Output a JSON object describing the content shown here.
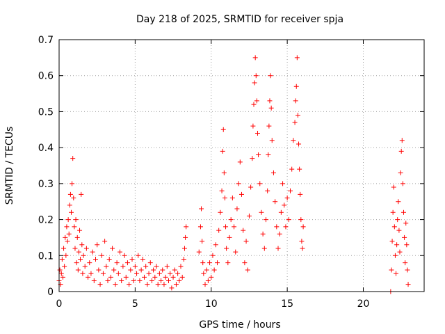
{
  "chart_data": {
    "type": "scatter",
    "title": "Day 218 of 2025, SRMTID for receiver spja",
    "xlabel": "GPS time / hours",
    "ylabel": "SRMTID / TECUs",
    "xlim": [
      0,
      24
    ],
    "ylim": [
      0,
      0.7
    ],
    "xticks": [
      0,
      5,
      10,
      15,
      20
    ],
    "yticks": [
      0,
      0.1,
      0.2,
      0.3,
      0.4,
      0.5,
      0.6,
      0.7
    ],
    "xtick_labels": [
      "0",
      "5",
      "10",
      "15",
      "20"
    ],
    "ytick_labels": [
      "0",
      "0.1",
      "0.2",
      "0.3",
      "0.4",
      "0.5",
      "0.6",
      "0.7"
    ],
    "grid": true,
    "marker": "+",
    "color": "#ff0000",
    "series": [
      {
        "name": "SRMTID",
        "points": [
          [
            0.0,
            0.03
          ],
          [
            0.05,
            0.06
          ],
          [
            0.1,
            0.02
          ],
          [
            0.15,
            0.05
          ],
          [
            0.2,
            0.09
          ],
          [
            0.25,
            0.04
          ],
          [
            0.3,
            0.12
          ],
          [
            0.35,
            0.07
          ],
          [
            0.4,
            0.15
          ],
          [
            0.45,
            0.1
          ],
          [
            0.5,
            0.18
          ],
          [
            0.55,
            0.14
          ],
          [
            0.6,
            0.2
          ],
          [
            0.65,
            0.16
          ],
          [
            0.7,
            0.24
          ],
          [
            0.75,
            0.27
          ],
          [
            0.8,
            0.22
          ],
          [
            0.85,
            0.3
          ],
          [
            0.9,
            0.37
          ],
          [
            0.95,
            0.26
          ],
          [
            1.0,
            0.18
          ],
          [
            1.05,
            0.12
          ],
          [
            1.1,
            0.2
          ],
          [
            1.15,
            0.08
          ],
          [
            1.2,
            0.15
          ],
          [
            1.25,
            0.06
          ],
          [
            1.3,
            0.11
          ],
          [
            1.35,
            0.17
          ],
          [
            1.4,
            0.09
          ],
          [
            1.45,
            0.27
          ],
          [
            1.5,
            0.13
          ],
          [
            1.55,
            0.05
          ],
          [
            1.6,
            0.1
          ],
          [
            1.7,
            0.07
          ],
          [
            1.8,
            0.12
          ],
          [
            1.9,
            0.04
          ],
          [
            2.0,
            0.08
          ],
          [
            2.1,
            0.05
          ],
          [
            2.2,
            0.11
          ],
          [
            2.3,
            0.03
          ],
          [
            2.4,
            0.09
          ],
          [
            2.5,
            0.13
          ],
          [
            2.6,
            0.06
          ],
          [
            2.7,
            0.02
          ],
          [
            2.8,
            0.1
          ],
          [
            2.9,
            0.05
          ],
          [
            3.0,
            0.14
          ],
          [
            3.1,
            0.07
          ],
          [
            3.2,
            0.03
          ],
          [
            3.3,
            0.09
          ],
          [
            3.4,
            0.04
          ],
          [
            3.5,
            0.12
          ],
          [
            3.6,
            0.06
          ],
          [
            3.7,
            0.02
          ],
          [
            3.8,
            0.08
          ],
          [
            3.9,
            0.05
          ],
          [
            4.0,
            0.11
          ],
          [
            4.1,
            0.03
          ],
          [
            4.2,
            0.07
          ],
          [
            4.3,
            0.1
          ],
          [
            4.4,
            0.04
          ],
          [
            4.5,
            0.08
          ],
          [
            4.6,
            0.02
          ],
          [
            4.7,
            0.06
          ],
          [
            4.8,
            0.09
          ],
          [
            4.9,
            0.03
          ],
          [
            5.0,
            0.07
          ],
          [
            5.1,
            0.05
          ],
          [
            5.2,
            0.1
          ],
          [
            5.3,
            0.03
          ],
          [
            5.4,
            0.06
          ],
          [
            5.5,
            0.09
          ],
          [
            5.6,
            0.04
          ],
          [
            5.7,
            0.07
          ],
          [
            5.8,
            0.02
          ],
          [
            5.9,
            0.05
          ],
          [
            6.0,
            0.08
          ],
          [
            6.1,
            0.03
          ],
          [
            6.2,
            0.06
          ],
          [
            6.3,
            0.04
          ],
          [
            6.4,
            0.07
          ],
          [
            6.5,
            0.02
          ],
          [
            6.6,
            0.05
          ],
          [
            6.7,
            0.03
          ],
          [
            6.8,
            0.06
          ],
          [
            6.9,
            0.02
          ],
          [
            7.0,
            0.04
          ],
          [
            7.1,
            0.07
          ],
          [
            7.2,
            0.03
          ],
          [
            7.3,
            0.05
          ],
          [
            7.4,
            0.01
          ],
          [
            7.5,
            0.04
          ],
          [
            7.6,
            0.06
          ],
          [
            7.7,
            0.02
          ],
          [
            7.8,
            0.05
          ],
          [
            7.9,
            0.03
          ],
          [
            8.0,
            0.07
          ],
          [
            8.1,
            0.04
          ],
          [
            8.2,
            0.09
          ],
          [
            8.25,
            0.12
          ],
          [
            8.3,
            0.15
          ],
          [
            8.35,
            0.18
          ],
          [
            9.2,
            0.11
          ],
          [
            9.3,
            0.18
          ],
          [
            9.35,
            0.23
          ],
          [
            9.4,
            0.14
          ],
          [
            9.45,
            0.08
          ],
          [
            9.5,
            0.05
          ],
          [
            9.6,
            0.02
          ],
          [
            9.7,
            0.06
          ],
          [
            9.8,
            0.03
          ],
          [
            9.9,
            0.08
          ],
          [
            10.0,
            0.04
          ],
          [
            10.1,
            0.1
          ],
          [
            10.2,
            0.06
          ],
          [
            10.3,
            0.13
          ],
          [
            10.4,
            0.08
          ],
          [
            10.5,
            0.17
          ],
          [
            10.6,
            0.22
          ],
          [
            10.7,
            0.28
          ],
          [
            10.75,
            0.39
          ],
          [
            10.8,
            0.45
          ],
          [
            10.85,
            0.33
          ],
          [
            10.9,
            0.26
          ],
          [
            10.95,
            0.18
          ],
          [
            11.0,
            0.12
          ],
          [
            11.1,
            0.08
          ],
          [
            11.2,
            0.15
          ],
          [
            11.3,
            0.2
          ],
          [
            11.4,
            0.26
          ],
          [
            11.5,
            0.18
          ],
          [
            11.6,
            0.11
          ],
          [
            11.7,
            0.23
          ],
          [
            11.8,
            0.3
          ],
          [
            11.9,
            0.36
          ],
          [
            12.0,
            0.27
          ],
          [
            12.1,
            0.17
          ],
          [
            12.2,
            0.08
          ],
          [
            12.3,
            0.14
          ],
          [
            12.4,
            0.06
          ],
          [
            12.5,
            0.21
          ],
          [
            12.6,
            0.29
          ],
          [
            12.7,
            0.37
          ],
          [
            12.75,
            0.46
          ],
          [
            12.8,
            0.52
          ],
          [
            12.85,
            0.58
          ],
          [
            12.9,
            0.65
          ],
          [
            12.95,
            0.6
          ],
          [
            13.0,
            0.53
          ],
          [
            13.05,
            0.44
          ],
          [
            13.1,
            0.38
          ],
          [
            13.2,
            0.3
          ],
          [
            13.3,
            0.22
          ],
          [
            13.4,
            0.16
          ],
          [
            13.5,
            0.12
          ],
          [
            13.6,
            0.2
          ],
          [
            13.7,
            0.28
          ],
          [
            13.75,
            0.38
          ],
          [
            13.8,
            0.46
          ],
          [
            13.85,
            0.53
          ],
          [
            13.9,
            0.6
          ],
          [
            13.95,
            0.51
          ],
          [
            14.0,
            0.42
          ],
          [
            14.1,
            0.33
          ],
          [
            14.2,
            0.25
          ],
          [
            14.3,
            0.18
          ],
          [
            14.4,
            0.12
          ],
          [
            14.5,
            0.16
          ],
          [
            14.6,
            0.22
          ],
          [
            14.7,
            0.3
          ],
          [
            14.8,
            0.24
          ],
          [
            14.9,
            0.18
          ],
          [
            15.0,
            0.26
          ],
          [
            15.1,
            0.2
          ],
          [
            15.2,
            0.28
          ],
          [
            15.3,
            0.34
          ],
          [
            15.4,
            0.42
          ],
          [
            15.5,
            0.47
          ],
          [
            15.55,
            0.53
          ],
          [
            15.6,
            0.57
          ],
          [
            15.65,
            0.65
          ],
          [
            15.7,
            0.49
          ],
          [
            15.75,
            0.41
          ],
          [
            15.8,
            0.34
          ],
          [
            15.85,
            0.27
          ],
          [
            15.9,
            0.2
          ],
          [
            15.95,
            0.14
          ],
          [
            16.0,
            0.12
          ],
          [
            16.05,
            0.18
          ],
          [
            21.8,
            0.0
          ],
          [
            21.85,
            0.06
          ],
          [
            21.9,
            0.14
          ],
          [
            21.95,
            0.22
          ],
          [
            22.0,
            0.29
          ],
          [
            22.05,
            0.18
          ],
          [
            22.1,
            0.1
          ],
          [
            22.15,
            0.05
          ],
          [
            22.2,
            0.13
          ],
          [
            22.25,
            0.2
          ],
          [
            22.3,
            0.25
          ],
          [
            22.35,
            0.17
          ],
          [
            22.4,
            0.11
          ],
          [
            22.45,
            0.33
          ],
          [
            22.5,
            0.39
          ],
          [
            22.55,
            0.42
          ],
          [
            22.6,
            0.3
          ],
          [
            22.65,
            0.22
          ],
          [
            22.7,
            0.15
          ],
          [
            22.75,
            0.08
          ],
          [
            22.8,
            0.19
          ],
          [
            22.85,
            0.13
          ],
          [
            22.9,
            0.06
          ],
          [
            22.95,
            0.02
          ]
        ]
      }
    ]
  }
}
